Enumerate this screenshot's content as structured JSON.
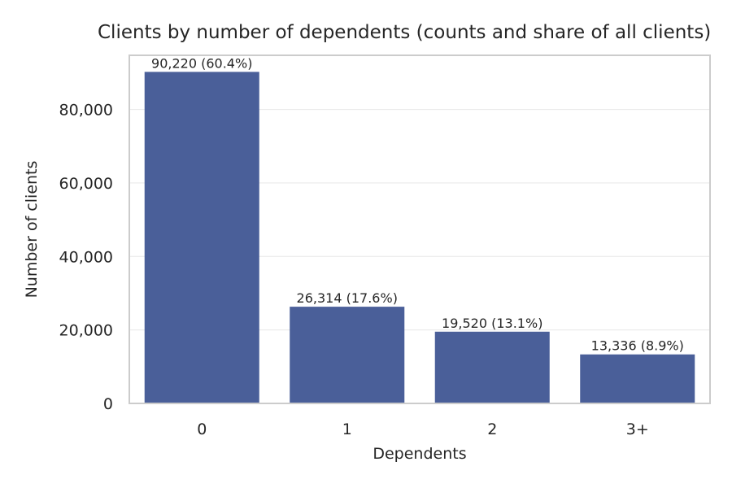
{
  "chart_data": {
    "type": "bar",
    "title": "Clients by number of dependents (counts and share of all clients)",
    "xlabel": "Dependents",
    "ylabel": "Number of clients",
    "categories": [
      "0",
      "1",
      "2",
      "3+"
    ],
    "values": [
      90220,
      26314,
      19520,
      13336
    ],
    "data_labels": [
      "90,220 (60.4%)",
      "26,314 (17.6%)",
      "19,520 (13.1%)",
      "13,336 (8.9%)"
    ],
    "y_ticks": [
      0,
      20000,
      40000,
      60000,
      80000
    ],
    "y_tick_labels": [
      "0",
      "20,000",
      "40,000",
      "60,000",
      "80,000"
    ],
    "ylim": [
      0,
      94731
    ],
    "grid": true,
    "bar_color": "#4a5f99"
  }
}
